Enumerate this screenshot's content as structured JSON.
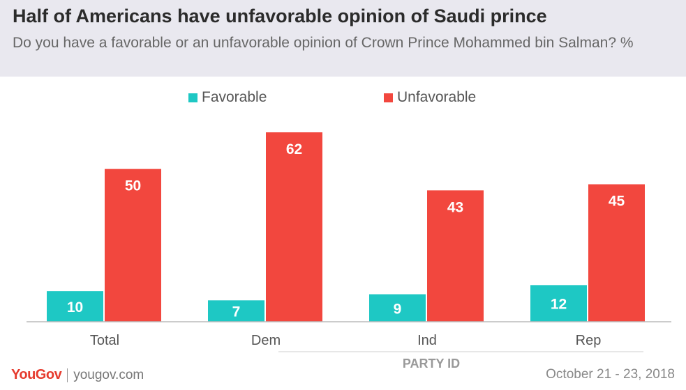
{
  "header": {
    "title": "Half of Americans have unfavorable opinion of Saudi prince",
    "subtitle": "Do you have a favorable or an unfavorable opinion of Crown Prince Mohammed bin Salman? %"
  },
  "footer": {
    "brand": "YouGov",
    "url": "yougov.com",
    "date": "October 21 - 23, 2018"
  },
  "colors": {
    "favorable": "#1ec8c4",
    "unfavorable": "#f2473e"
  },
  "chart_data": {
    "type": "bar",
    "title": "Half of Americans have unfavorable opinion of Saudi prince",
    "subtitle": "Do you have a favorable or an unfavorable opinion of Crown Prince Mohammed bin Salman? %",
    "categories": [
      "Total",
      "Dem",
      "Ind",
      "Rep"
    ],
    "group_label": "PARTY ID",
    "series": [
      {
        "name": "Favorable",
        "values": [
          10,
          7,
          9,
          12
        ],
        "color": "#1ec8c4"
      },
      {
        "name": "Unfavorable",
        "values": [
          50,
          62,
          43,
          45
        ],
        "color": "#f2473e"
      }
    ],
    "data_labels": true,
    "legend": "top",
    "grid": false,
    "ylim": [
      0,
      62
    ]
  }
}
